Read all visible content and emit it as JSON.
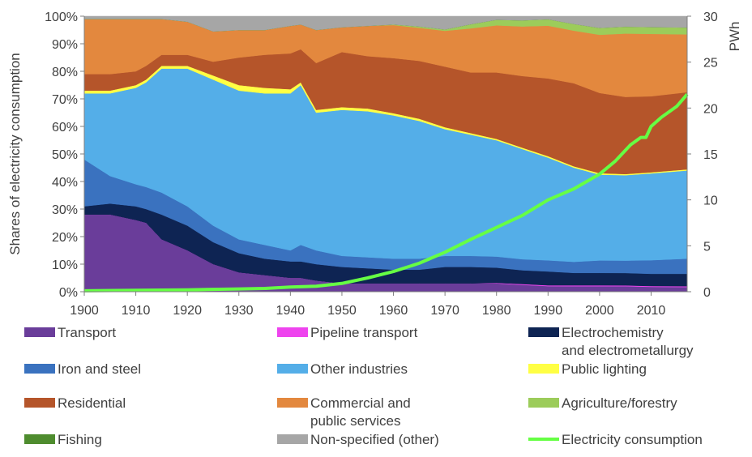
{
  "chart_data": {
    "type": "area",
    "stacked": true,
    "title": "",
    "ylabel": "Shares of electricity consumption",
    "y2label": "PWh",
    "x": [
      1900,
      1905,
      1910,
      1912,
      1915,
      1920,
      1925,
      1930,
      1935,
      1940,
      1942,
      1945,
      1950,
      1955,
      1960,
      1965,
      1970,
      1975,
      1980,
      1985,
      1990,
      1995,
      2000,
      2005,
      2010,
      2017
    ],
    "xticks": [
      "1900",
      "1910",
      "1920",
      "1930",
      "1940",
      "1950",
      "1960",
      "1970",
      "1980",
      "1990",
      "2000",
      "2010"
    ],
    "xlim": [
      1900,
      2017
    ],
    "ylim": [
      0,
      100
    ],
    "yticks": [
      "0%",
      "10%",
      "20%",
      "30%",
      "40%",
      "50%",
      "60%",
      "70%",
      "80%",
      "90%",
      "100%"
    ],
    "y2lim": [
      0,
      30
    ],
    "y2ticks": [
      "0",
      "5",
      "10",
      "15",
      "20",
      "25",
      "30"
    ],
    "legend_position": "bottom",
    "series": [
      {
        "name": "Transport",
        "color": "#6a3d9a",
        "values": [
          28,
          28,
          26,
          25,
          19,
          15,
          10,
          7,
          6,
          5,
          5,
          4,
          3,
          3,
          3,
          3,
          3,
          3,
          3,
          2.5,
          2,
          2,
          2,
          2,
          1.8,
          1.7
        ]
      },
      {
        "name": "Pipeline transport",
        "color": "#ee44ee",
        "values": [
          0,
          0,
          0,
          0,
          0,
          0,
          0,
          0,
          0,
          0,
          0,
          0,
          0,
          0,
          0,
          0,
          0,
          0,
          0.2,
          0.3,
          0.3,
          0.3,
          0.3,
          0.3,
          0.3,
          0.3
        ]
      },
      {
        "name": "Electrochemistry and electrometallurgy",
        "color": "#0e2453",
        "values": [
          3,
          4,
          5,
          5,
          9,
          9,
          8,
          7,
          6,
          6,
          6,
          6,
          6,
          5.5,
          5,
          5,
          6,
          6,
          5.5,
          5,
          5,
          4.5,
          4.5,
          4.5,
          4.5,
          4.5
        ]
      },
      {
        "name": "Iron and steel",
        "color": "#3a72bf",
        "values": [
          17,
          10,
          8,
          8,
          8,
          7,
          6,
          5,
          5,
          4,
          6,
          5,
          4,
          4,
          4,
          4,
          4,
          4,
          4,
          4,
          4,
          4,
          4.5,
          4.5,
          5,
          5.5
        ]
      },
      {
        "name": "Other industries",
        "color": "#54aee8",
        "values": [
          24,
          30,
          35,
          38,
          45,
          50,
          53,
          54,
          55,
          57,
          58,
          50,
          53,
          53,
          52,
          50,
          46,
          44,
          42,
          40,
          37,
          34,
          31,
          31,
          32,
          32
        ]
      },
      {
        "name": "Public lighting",
        "color": "#ffff44",
        "values": [
          1,
          1,
          1,
          1,
          1,
          1,
          1.5,
          2,
          2,
          1.5,
          1,
          1,
          1,
          1,
          0.8,
          0.8,
          0.7,
          0.6,
          0.5,
          0.5,
          0.5,
          0.5,
          0.5,
          0.4,
          0.4,
          0.4
        ]
      },
      {
        "name": "Residential",
        "color": "#b5552a",
        "values": [
          6,
          6,
          5,
          5,
          4,
          4,
          5,
          10,
          12,
          13,
          12,
          17,
          20,
          19,
          20,
          21,
          22,
          22,
          24,
          26,
          28,
          30,
          29,
          28,
          28,
          28
        ]
      },
      {
        "name": "Commercial and public services",
        "color": "#e3883e",
        "values": [
          20,
          20,
          19,
          17,
          13,
          12,
          11,
          10,
          9,
          10,
          9,
          12,
          9,
          11,
          12,
          12,
          13,
          16,
          17,
          18,
          19,
          19,
          21,
          23,
          23,
          21
        ]
      },
      {
        "name": "Agriculture/forestry",
        "color": "#9ccc5a",
        "values": [
          0,
          0,
          0,
          0,
          0,
          0,
          0,
          0,
          0,
          0,
          0,
          0,
          0,
          0,
          0.2,
          0.5,
          0.5,
          1.5,
          2,
          2.2,
          2.3,
          2.4,
          2.5,
          2.5,
          2.5,
          2.5
        ]
      },
      {
        "name": "Fishing",
        "color": "#4e8c2e",
        "values": [
          0,
          0,
          0,
          0,
          0,
          0,
          0,
          0,
          0,
          0,
          0,
          0,
          0,
          0,
          0,
          0,
          0,
          0,
          0,
          0,
          0,
          0,
          0,
          0,
          0,
          0
        ]
      },
      {
        "name": "Non-specified (other)",
        "color": "#a6a6a6",
        "values": [
          1,
          1,
          1,
          1,
          1,
          2,
          5.5,
          5,
          5,
          3.5,
          3,
          5,
          4,
          3.5,
          3,
          3.7,
          4.8,
          2.9,
          1.3,
          1.5,
          1.1,
          2.8,
          4.2,
          3.8,
          4,
          4.1
        ]
      }
    ],
    "line_series": {
      "name": "Electricity consumption",
      "axis": "secondary",
      "color": "#66ff44",
      "x": [
        1900,
        1910,
        1920,
        1930,
        1935,
        1940,
        1945,
        1950,
        1955,
        1960,
        1965,
        1970,
        1975,
        1980,
        1985,
        1990,
        1995,
        2000,
        2003,
        2006,
        2008,
        2009,
        2010,
        2012,
        2015,
        2017
      ],
      "values": [
        0.1,
        0.15,
        0.2,
        0.3,
        0.35,
        0.5,
        0.6,
        0.9,
        1.5,
        2.2,
        3.1,
        4.3,
        5.7,
        7.0,
        8.3,
        10.0,
        11.2,
        12.8,
        14.2,
        16.0,
        16.8,
        16.8,
        18.0,
        19.0,
        20.2,
        21.5
      ]
    }
  }
}
